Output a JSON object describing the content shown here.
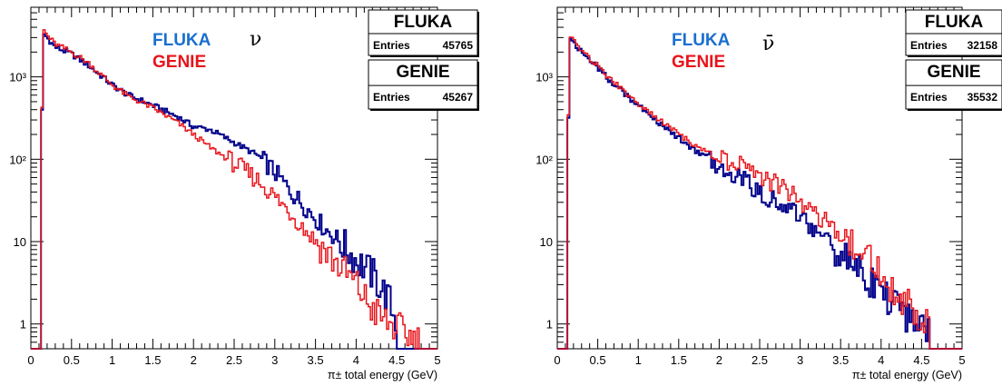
{
  "chart_data": [
    {
      "type": "line",
      "symbol": "ν",
      "xlabel": "π± total energy (GeV)",
      "ylabel": "",
      "xlim": [
        0,
        5
      ],
      "ylim": [
        0.5,
        7000
      ],
      "yscale": "log",
      "x_ticks": [
        "0",
        "0.5",
        "1",
        "1.5",
        "2",
        "2.5",
        "3",
        "3.5",
        "4",
        "4.5",
        "5"
      ],
      "y_ticks": [
        "1",
        "10",
        "10²",
        "10³"
      ],
      "legend": [
        "FLUKA",
        "GENIE"
      ],
      "stat_boxes": [
        {
          "title": "FLUKA",
          "label": "Entries",
          "value": "45765"
        },
        {
          "title": "GENIE",
          "label": "Entries",
          "value": "45267"
        }
      ],
      "series": [
        {
          "name": "FLUKA",
          "color": "#00008b",
          "points": [
            [
              0.13,
              0.5
            ],
            [
              0.14,
              3500
            ],
            [
              0.2,
              3000
            ],
            [
              0.3,
              2300
            ],
            [
              0.5,
              1900
            ],
            [
              0.7,
              1400
            ],
            [
              1.0,
              800
            ],
            [
              1.2,
              600
            ],
            [
              1.5,
              450
            ],
            [
              1.8,
              330
            ],
            [
              2.0,
              250
            ],
            [
              2.2,
              230
            ],
            [
              2.5,
              160
            ],
            [
              2.8,
              110
            ],
            [
              3.0,
              70
            ],
            [
              3.2,
              40
            ],
            [
              3.4,
              25
            ],
            [
              3.6,
              15
            ],
            [
              3.8,
              10
            ],
            [
              4.0,
              6
            ],
            [
              4.2,
              4
            ],
            [
              4.4,
              2
            ],
            [
              4.5,
              1
            ]
          ]
        },
        {
          "name": "GENIE",
          "color": "#e8141b",
          "points": [
            [
              0.13,
              0.5
            ],
            [
              0.14,
              4000
            ],
            [
              0.2,
              3200
            ],
            [
              0.3,
              2500
            ],
            [
              0.5,
              2000
            ],
            [
              0.7,
              1500
            ],
            [
              1.0,
              800
            ],
            [
              1.2,
              580
            ],
            [
              1.5,
              420
            ],
            [
              1.8,
              280
            ],
            [
              2.0,
              200
            ],
            [
              2.2,
              140
            ],
            [
              2.5,
              90
            ],
            [
              2.8,
              55
            ],
            [
              3.0,
              35
            ],
            [
              3.2,
              22
            ],
            [
              3.4,
              13
            ],
            [
              3.6,
              8
            ],
            [
              3.8,
              5
            ],
            [
              4.0,
              3
            ],
            [
              4.2,
              1.5
            ],
            [
              4.4,
              1
            ],
            [
              4.8,
              0.6
            ]
          ]
        }
      ]
    },
    {
      "type": "line",
      "symbol": "ν̄",
      "xlabel": "π± total energy (GeV)",
      "ylabel": "",
      "xlim": [
        0,
        5
      ],
      "ylim": [
        0.5,
        7000
      ],
      "yscale": "log",
      "x_ticks": [
        "0",
        "0.5",
        "1",
        "1.5",
        "2",
        "2.5",
        "3",
        "3.5",
        "4",
        "4.5",
        "5"
      ],
      "y_ticks": [
        "1",
        "10",
        "10²",
        "10³"
      ],
      "legend": [
        "FLUKA",
        "GENIE"
      ],
      "stat_boxes": [
        {
          "title": "FLUKA",
          "label": "Entries",
          "value": "32158"
        },
        {
          "title": "GENIE",
          "label": "Entries",
          "value": "35532"
        }
      ],
      "series": [
        {
          "name": "FLUKA",
          "color": "#00008b",
          "points": [
            [
              0.13,
              0.5
            ],
            [
              0.14,
              3000
            ],
            [
              0.2,
              2600
            ],
            [
              0.3,
              2000
            ],
            [
              0.5,
              1300
            ],
            [
              0.7,
              800
            ],
            [
              1.0,
              450
            ],
            [
              1.3,
              260
            ],
            [
              1.5,
              180
            ],
            [
              1.8,
              110
            ],
            [
              2.0,
              80
            ],
            [
              2.3,
              55
            ],
            [
              2.5,
              40
            ],
            [
              2.8,
              28
            ],
            [
              3.0,
              20
            ],
            [
              3.2,
              14
            ],
            [
              3.4,
              9
            ],
            [
              3.6,
              6
            ],
            [
              3.8,
              4
            ],
            [
              4.0,
              2.5
            ],
            [
              4.2,
              1.5
            ],
            [
              4.4,
              1
            ],
            [
              4.6,
              0.8
            ]
          ]
        },
        {
          "name": "GENIE",
          "color": "#e8141b",
          "points": [
            [
              0.13,
              0.5
            ],
            [
              0.14,
              3400
            ],
            [
              0.2,
              2800
            ],
            [
              0.3,
              2100
            ],
            [
              0.5,
              1350
            ],
            [
              0.7,
              850
            ],
            [
              1.0,
              480
            ],
            [
              1.3,
              280
            ],
            [
              1.5,
              200
            ],
            [
              1.8,
              130
            ],
            [
              2.0,
              100
            ],
            [
              2.3,
              80
            ],
            [
              2.5,
              60
            ],
            [
              2.8,
              45
            ],
            [
              3.0,
              30
            ],
            [
              3.2,
              22
            ],
            [
              3.4,
              15
            ],
            [
              3.6,
              10
            ],
            [
              3.8,
              7
            ],
            [
              4.0,
              4
            ],
            [
              4.2,
              2.5
            ],
            [
              4.4,
              1.5
            ],
            [
              4.6,
              0.8
            ]
          ]
        }
      ]
    }
  ]
}
